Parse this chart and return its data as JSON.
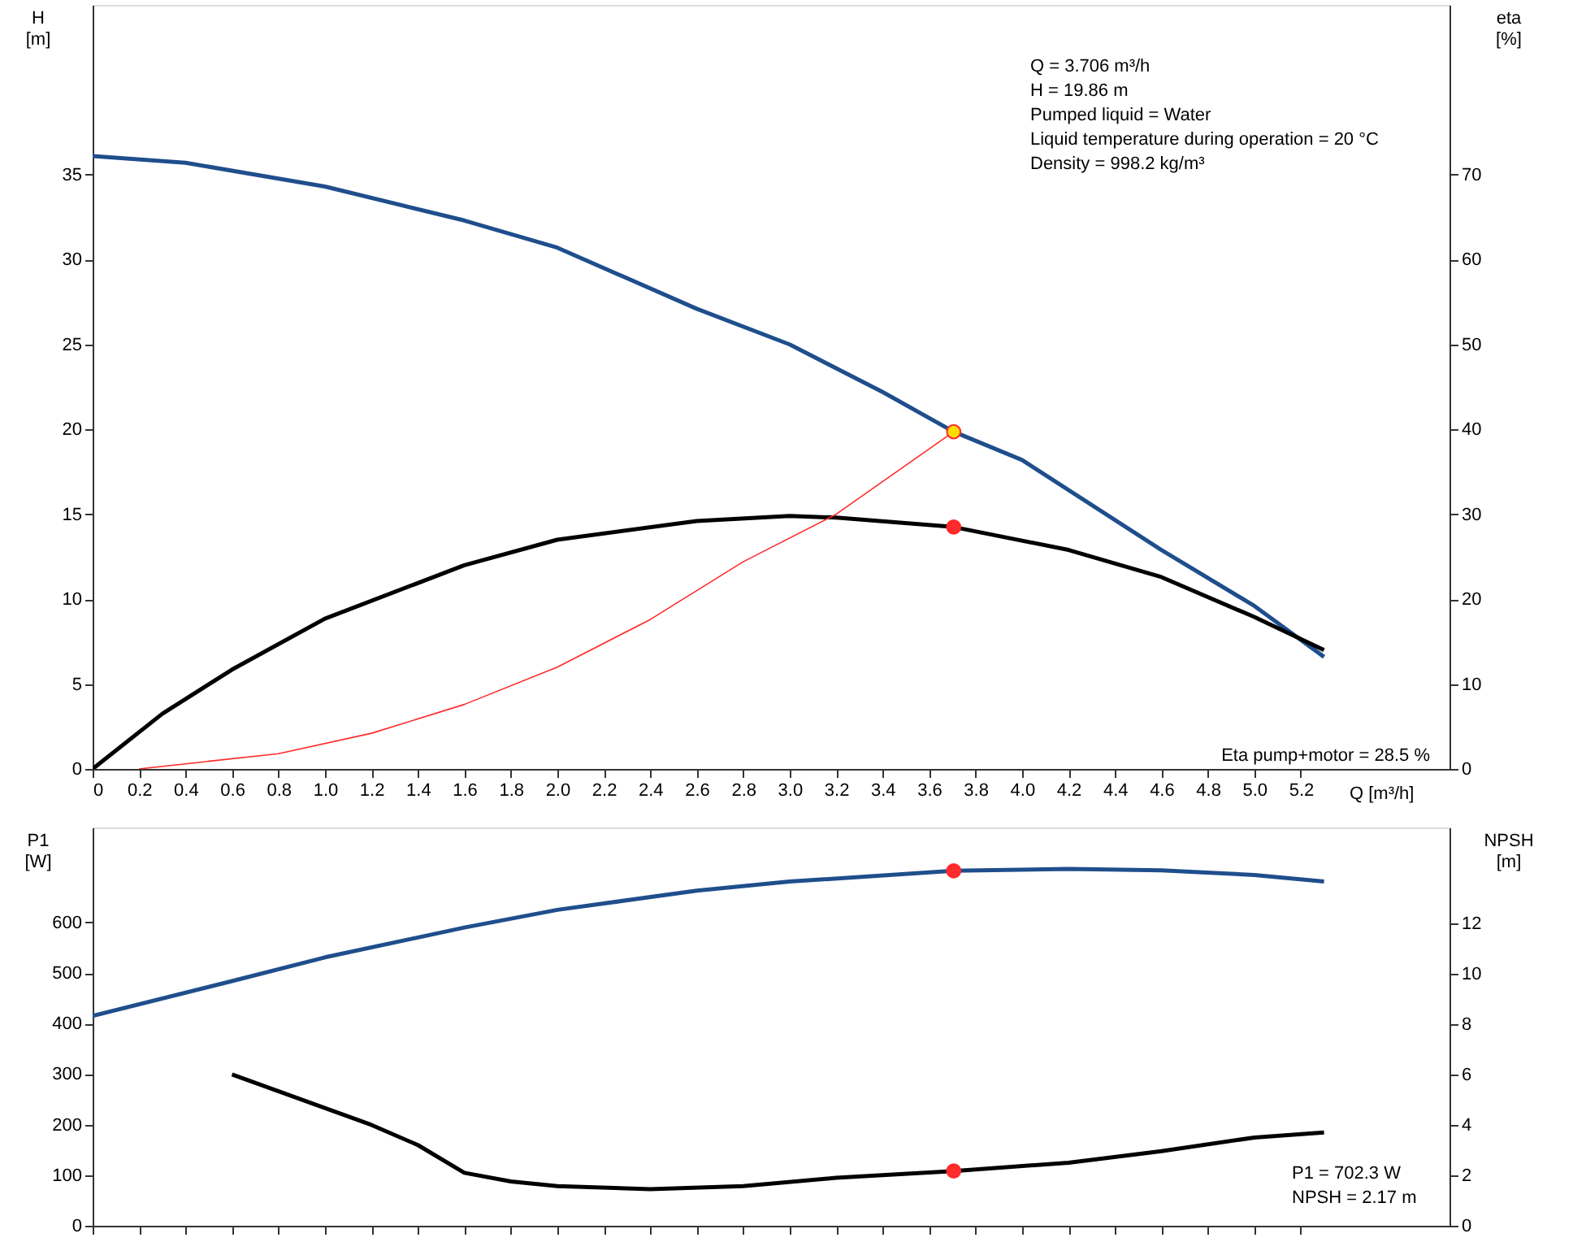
{
  "chart_data": [
    {
      "type": "line",
      "xlabel": "Q [m³/h]",
      "ylabel": "H\n[m]",
      "y2label": "eta\n[%]",
      "xlim": [
        0,
        5.84
      ],
      "ylim": [
        0,
        45
      ],
      "y2lim": [
        0,
        90
      ],
      "xticks": [
        0,
        0.2,
        0.4,
        0.6,
        0.8,
        {
          "value": 1,
          "label": "1.0"
        },
        1.2,
        1.4,
        1.6,
        1.8,
        {
          "value": 2,
          "label": "2.0"
        },
        2.2,
        2.4,
        2.6,
        2.8,
        {
          "value": 3,
          "label": "3.0"
        },
        3.2,
        3.4,
        3.6,
        3.8,
        {
          "value": 4,
          "label": "4.0"
        },
        4.2,
        4.4,
        4.6,
        4.8,
        {
          "value": 5,
          "label": "5.0"
        },
        5.2
      ],
      "yticks": [
        0,
        5,
        10,
        15,
        20,
        25,
        30,
        35
      ],
      "y2ticks": [
        0,
        10,
        20,
        30,
        40,
        50,
        60,
        70
      ],
      "grid": false,
      "series": [
        {
          "color": "#1f4e8c",
          "x": [
            0,
            0.4,
            1.0,
            1.6,
            2.0,
            2.6,
            3.0,
            3.4,
            3.706,
            4.0,
            4.6,
            5.0,
            5.3
          ],
          "values": [
            36.1,
            35.7,
            34.3,
            32.3,
            30.7,
            27.1,
            25.0,
            22.2,
            19.86,
            18.2,
            12.9,
            9.6,
            6.6
          ]
        },
        {
          "color": "#000000",
          "axis": "y2",
          "x": [
            0,
            0.3,
            0.6,
            1.0,
            1.6,
            2.0,
            2.6,
            3.0,
            3.2,
            3.706,
            4.2,
            4.6,
            5.0,
            5.3
          ],
          "values": [
            0,
            6.5,
            11.7,
            17.7,
            24.0,
            27.0,
            29.2,
            29.8,
            29.6,
            28.5,
            25.8,
            22.6,
            17.9,
            14.0
          ]
        },
        {
          "color": "#ff2a2a",
          "x": [
            0.2,
            0.8,
            1.2,
            1.6,
            2.0,
            2.4,
            2.8,
            3.2,
            3.706
          ],
          "values": [
            0,
            0.9,
            2.1,
            3.8,
            6.0,
            8.8,
            12.2,
            15.0,
            19.86
          ]
        },
        {
          "type": "scatter",
          "color": "#ff2a2a",
          "axis": "y2",
          "x": [
            3.706
          ],
          "values": [
            28.5
          ]
        },
        {
          "type": "scatter",
          "color": "#ffdd00",
          "x": [
            3.706
          ],
          "values": [
            19.86
          ]
        }
      ],
      "annotations": [
        "Q = 3.706 m³/h",
        "H = 19.86 m",
        "Pumped liquid = Water",
        "Liquid temperature during operation = 20 °C",
        "Density = 998.2 kg/m³",
        "Eta pump+motor = 28.5 %"
      ]
    },
    {
      "type": "line",
      "ylabel": "P1\n[W]",
      "y2label": "NPSH\n[m]",
      "xlim": [
        0,
        5.84
      ],
      "ylim": [
        0,
        788
      ],
      "y2lim": [
        0,
        15.8
      ],
      "xticks": [
        0,
        0.2,
        0.4,
        0.6,
        0.8,
        1,
        1.2,
        1.4,
        1.6,
        1.8,
        2,
        2.2,
        2.4,
        2.6,
        2.8,
        3,
        3.2,
        3.4,
        3.6,
        3.8,
        4,
        4.2,
        4.4,
        4.6,
        4.8,
        5,
        5.2
      ],
      "yticks": [
        0,
        100,
        200,
        300,
        400,
        500,
        600
      ],
      "y2ticks": [
        0,
        2,
        4,
        6,
        8,
        10,
        12
      ],
      "tick_labels": "y",
      "grid": false,
      "series": [
        {
          "color": "#1f4e8c",
          "x": [
            0,
            0.6,
            1.0,
            1.6,
            2.0,
            2.6,
            3.0,
            3.706,
            4.2,
            4.6,
            5.0,
            5.3
          ],
          "values": [
            415,
            484,
            531,
            590,
            625,
            663,
            681,
            702.3,
            706,
            703,
            694,
            681
          ]
        },
        {
          "color": "#000000",
          "axis": "y2",
          "x": [
            0.6,
            1.2,
            1.4,
            1.6,
            1.8,
            2.0,
            2.4,
            2.8,
            3.2,
            3.706,
            4.2,
            4.6,
            5.0,
            5.3
          ],
          "values": [
            6.0,
            4.0,
            3.2,
            2.1,
            1.76,
            1.57,
            1.45,
            1.57,
            1.9,
            2.17,
            2.5,
            2.96,
            3.5,
            3.7
          ]
        },
        {
          "type": "scatter",
          "color": "#ff2a2a",
          "x": [
            3.706
          ],
          "values": [
            702.3
          ]
        },
        {
          "type": "scatter",
          "color": "#ff2a2a",
          "axis": "y2",
          "x": [
            3.706
          ],
          "values": [
            2.17
          ]
        }
      ],
      "annotations": [
        "P1 = 702.3 W",
        "NPSH = 2.17 m"
      ]
    }
  ]
}
